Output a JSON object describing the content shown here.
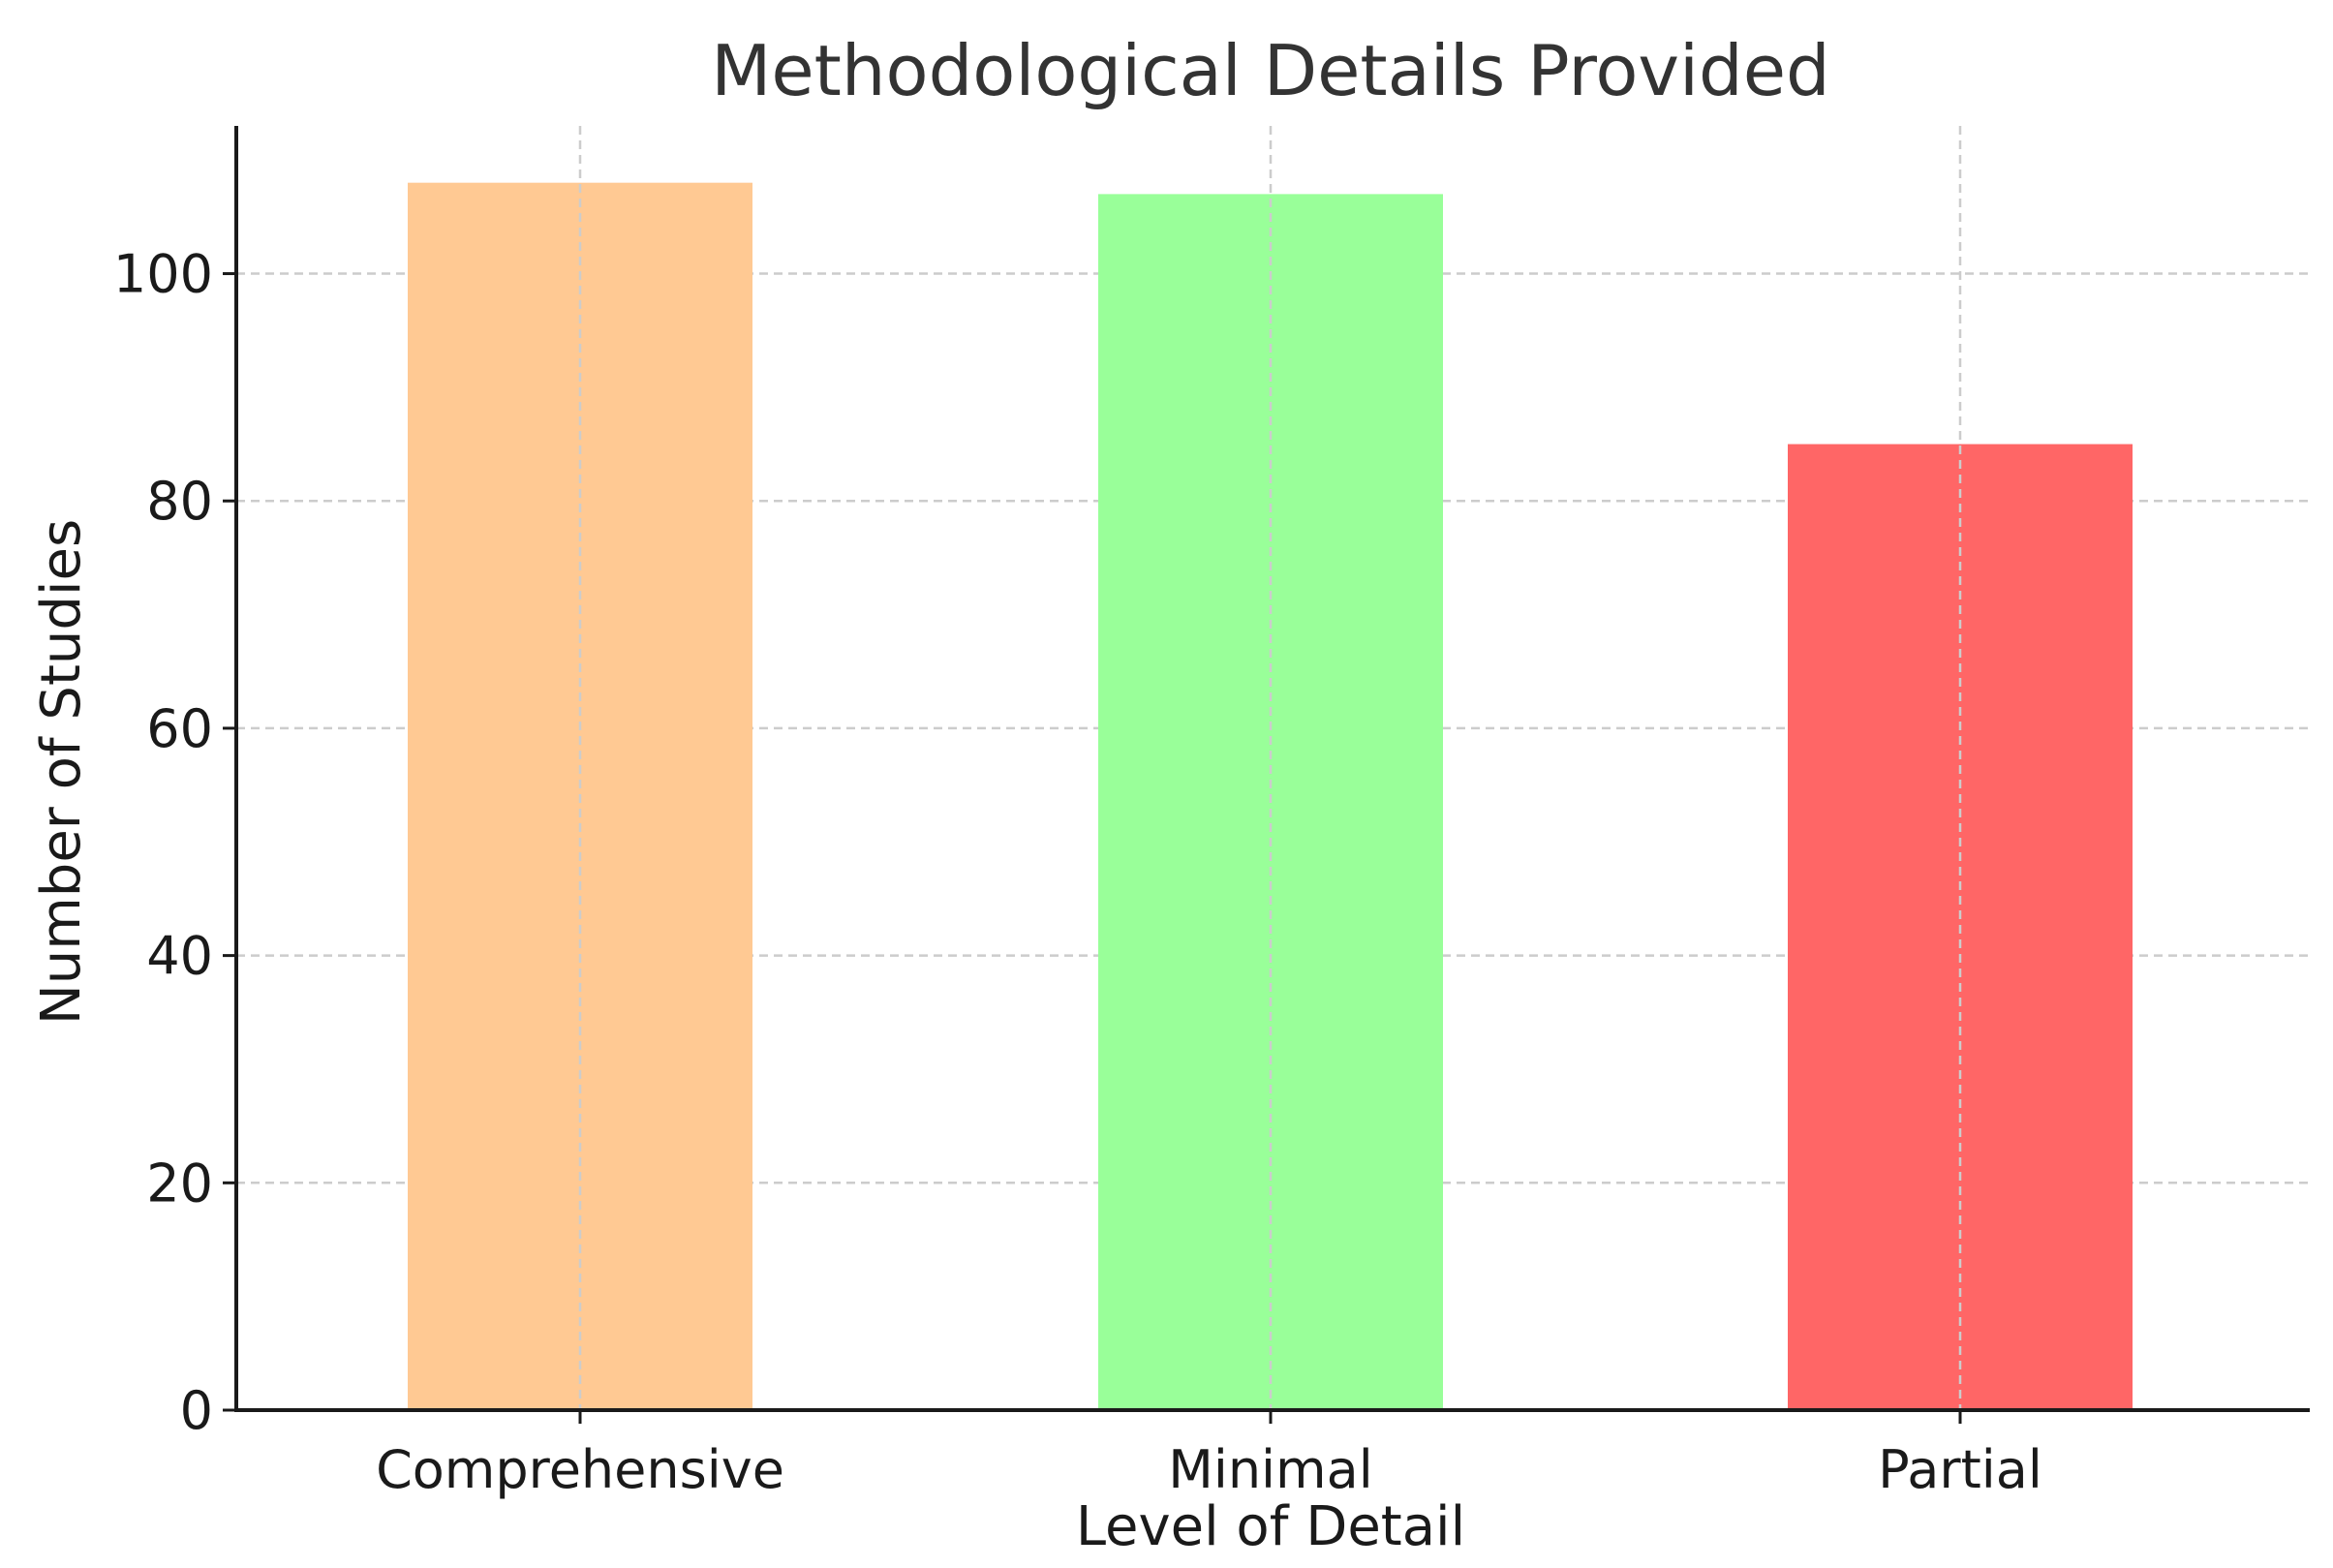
{
  "chart_data": {
    "type": "bar",
    "title": "Methodological Details Provided",
    "xlabel": "Level of Detail",
    "ylabel": "Number of Studies",
    "categories": [
      "Comprehensive",
      "Minimal",
      "Partial"
    ],
    "values": [
      108,
      107,
      85
    ],
    "colors": [
      "#ffc993",
      "#99ff99",
      "#ff6666"
    ],
    "ylim": [
      0,
      113
    ],
    "yticks": [
      0,
      20,
      40,
      60,
      80,
      100
    ],
    "grid": true,
    "legend": "none"
  }
}
